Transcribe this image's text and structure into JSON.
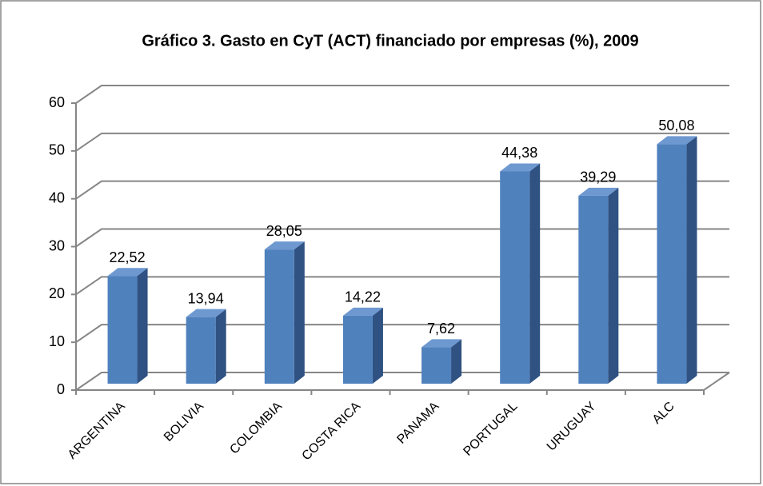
{
  "chart_data": {
    "type": "bar3d",
    "title": "Gráfico 3. Gasto en CyT (ACT) financiado por empresas (%), 2009",
    "categories": [
      "ARGENTINA",
      "BOLIVIA",
      "COLOMBIA",
      "COSTA RICA",
      "PANAMA",
      "PORTUGAL",
      "URUGUAY",
      "ALC"
    ],
    "values": [
      22.52,
      13.94,
      28.05,
      14.22,
      7.62,
      44.38,
      39.29,
      50.08
    ],
    "value_labels": [
      "22,52",
      "13,94",
      "28,05",
      "14,22",
      "7,62",
      "44,38",
      "39,29",
      "50,08"
    ],
    "color": "#4f81bd",
    "ylim": [
      0,
      60
    ],
    "yticks": [
      0,
      10,
      20,
      30,
      40,
      50,
      60
    ],
    "grid": true
  }
}
